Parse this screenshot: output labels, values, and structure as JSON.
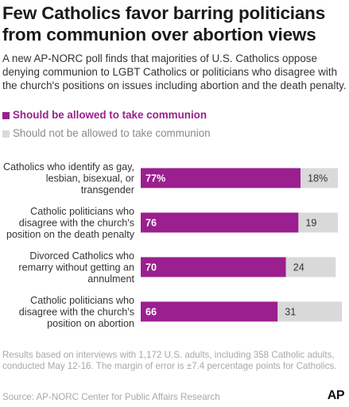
{
  "header": {
    "title": "Few Catholics favor barring politicians from communion over abortion views",
    "subtitle": "A new AP-NORC poll finds that majorities of U.S. Catholics oppose denying communion to LGBT Catholics or politicians who disagree with the church's positions on issues including abortion and the death penalty."
  },
  "legend": {
    "items": [
      {
        "label": "Should be allowed to take communion",
        "color": "#9b1f8f"
      },
      {
        "label": "Should not be allowed to take communion",
        "color": "#d9d9d9"
      }
    ]
  },
  "chart_data": {
    "type": "bar",
    "orientation": "horizontal",
    "stacked": true,
    "categories": [
      "Catholics who identify as gay, lesbian, bisexual, or transgender",
      "Catholic politicians who disagree with the church's position on the death penalty",
      "Divorced Catholics who remarry without getting an annulment",
      "Catholic politicians who disagree with the church's position on abortion"
    ],
    "category_lines": [
      [
        "Catholics who identify as gay,",
        "lesbian, bisexual, or",
        "transgender"
      ],
      [
        "Catholic politicians who",
        "disagree with the church's",
        "position on the death penalty"
      ],
      [
        "Divorced Catholics who",
        "remarry without getting an",
        "annulment"
      ],
      [
        "Catholic politicians who",
        "disagree with the church's",
        "position on abortion"
      ]
    ],
    "series": [
      {
        "name": "Should be allowed to take communion",
        "values": [
          77,
          76,
          70,
          66
        ],
        "labels": [
          "77%",
          "76",
          "70",
          "66"
        ],
        "color": "#9b1f8f"
      },
      {
        "name": "Should not be allowed to take communion",
        "values": [
          18,
          19,
          24,
          31
        ],
        "labels": [
          "18%",
          "19",
          "24",
          "31"
        ],
        "color": "#d9d9d9"
      }
    ],
    "xlim": [
      0,
      100
    ],
    "grid": false,
    "legend_position": "top-left"
  },
  "footer": {
    "notes": "Results based on interviews with 1,172 U.S. adults, including 358 Catholic adults, conducted May 12-16. The margin of error is ±7.4 percentage points for Catholics.",
    "source": "Source: AP-NORC Center for Public Affairs Research",
    "logo": "AP"
  }
}
